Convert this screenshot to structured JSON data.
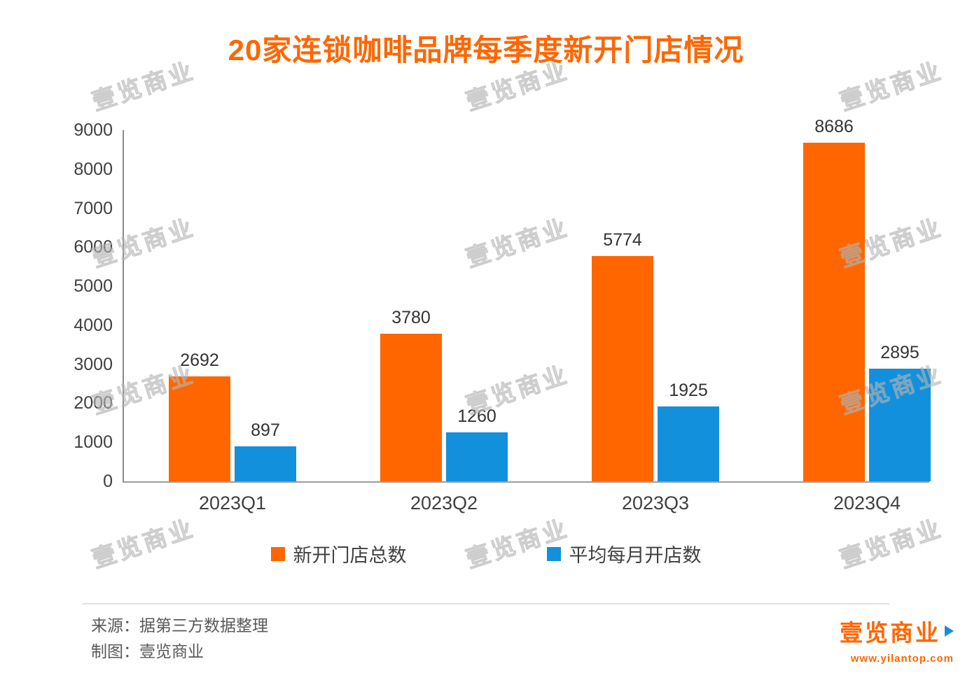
{
  "title": "20家连锁咖啡品牌每季度新开门店情况",
  "watermark": "壹览商业",
  "chart_data": {
    "type": "bar",
    "categories": [
      "2023Q1",
      "2023Q2",
      "2023Q3",
      "2023Q4"
    ],
    "series": [
      {
        "name": "新开门店总数",
        "color": "#FF6600",
        "values": [
          2692,
          3780,
          5774,
          8686
        ]
      },
      {
        "name": "平均每月开店数",
        "color": "#1290DB",
        "values": [
          897,
          1260,
          1925,
          2895
        ]
      }
    ],
    "title": "20家连锁咖啡品牌每季度新开门店情况",
    "xlabel": "",
    "ylabel": "",
    "ylim": [
      0,
      9000
    ],
    "ytick_step": 1000,
    "grid": false,
    "legend_position": "bottom"
  },
  "footer": {
    "source_label": "来源：据第三方数据整理",
    "maker_label": "制图：壹览商业"
  },
  "logo": {
    "text": "壹览商业",
    "url": "www.yilantop.com"
  },
  "colors": {
    "title": "#FF6600",
    "brand_orange": "#FF6600",
    "series_orange": "#FF6600",
    "series_blue": "#1290DB"
  }
}
